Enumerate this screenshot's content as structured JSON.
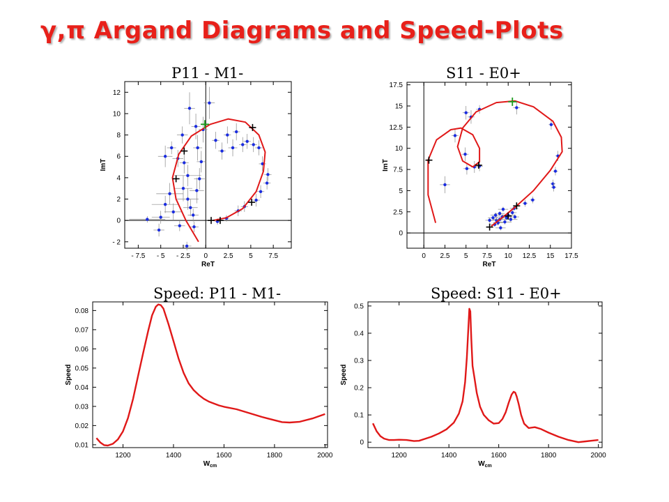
{
  "slide": {
    "title": "γ,π Argand Diagrams and Speed-Plots",
    "colors": {
      "title": "#e8201a",
      "curve": "#e01818",
      "points": "#1a2ce0",
      "marker": "#000000",
      "green_marker": "#1a9a1a"
    }
  },
  "chart_data": [
    {
      "type": "scatter",
      "title": "P11 -  M1-",
      "xlabel": "ReT",
      "ylabel": "ImT",
      "xlim": [
        -9,
        9.5
      ],
      "ylim": [
        -2.6,
        13
      ],
      "xticks": [
        -7.5,
        -5,
        -2.5,
        0,
        2.5,
        5,
        7.5
      ],
      "xtick_labels": [
        "- 7.5",
        "- 5",
        "- 2.5",
        "0",
        "2.5",
        "5",
        "7.5"
      ],
      "yticks": [
        -2,
        0,
        2,
        4,
        6,
        8,
        10,
        12
      ],
      "ytick_labels": [
        "- 2",
        "0",
        "2",
        "4",
        "6",
        "8",
        "10",
        "12"
      ],
      "axis_lines": {
        "x": 0,
        "y": 0
      },
      "curve": [
        [
          -0.8,
          -2.0
        ],
        [
          -2.2,
          0.0
        ],
        [
          -3.3,
          2.0
        ],
        [
          -3.7,
          4.0
        ],
        [
          -3.0,
          6.2
        ],
        [
          -1.6,
          7.9
        ],
        [
          0.5,
          9.0
        ],
        [
          2.5,
          9.5
        ],
        [
          4.4,
          9.2
        ],
        [
          5.9,
          8.0
        ],
        [
          6.6,
          6.4
        ],
        [
          6.4,
          4.6
        ],
        [
          5.6,
          2.7
        ],
        [
          4.1,
          1.1
        ],
        [
          2.3,
          0.25
        ],
        [
          0.8,
          0.0
        ]
      ],
      "markers_black": [
        [
          -2.4,
          6.5
        ],
        [
          -3.3,
          3.9
        ],
        [
          5.2,
          8.7
        ],
        [
          5.1,
          1.7
        ],
        [
          0.6,
          0.0
        ],
        [
          1.6,
          0.0
        ]
      ],
      "markers_green": [
        [
          -0.1,
          9.0
        ]
      ],
      "points": [
        [
          -6.5,
          0.1,
          2.0,
          0.3
        ],
        [
          -5.0,
          0.3,
          1.0,
          0.6
        ],
        [
          -4.5,
          1.5,
          1.5,
          0.8
        ],
        [
          -4.0,
          2.5,
          1.5,
          1.0
        ],
        [
          -4.5,
          6.0,
          0.8,
          1.0
        ],
        [
          -3.8,
          6.8,
          0.5,
          0.6
        ],
        [
          -3.1,
          5.8,
          0.6,
          0.8
        ],
        [
          -2.6,
          8.0,
          0.6,
          0.8
        ],
        [
          -2.4,
          5.4,
          0.5,
          1.0
        ],
        [
          -2.0,
          4.2,
          1.5,
          1.0
        ],
        [
          -2.5,
          3.0,
          1.0,
          1.2
        ],
        [
          -2.0,
          2.0,
          1.2,
          1.0
        ],
        [
          -1.7,
          1.2,
          0.8,
          0.8
        ],
        [
          -1.4,
          0.5,
          0.6,
          0.6
        ],
        [
          -1.0,
          2.8,
          0.8,
          1.2
        ],
        [
          -0.7,
          3.9,
          0.6,
          1.0
        ],
        [
          -0.5,
          5.5,
          0.5,
          1.0
        ],
        [
          -0.9,
          6.8,
          0.5,
          1.2
        ],
        [
          -0.3,
          8.5,
          0.5,
          1.2
        ],
        [
          -1.1,
          8.8,
          0.5,
          1.2
        ],
        [
          -1.8,
          10.5,
          0.6,
          1.5
        ],
        [
          0.4,
          11.0,
          0.6,
          1.5
        ],
        [
          1.1,
          7.5,
          0.4,
          0.8
        ],
        [
          1.8,
          6.5,
          0.4,
          0.8
        ],
        [
          2.4,
          8.0,
          0.4,
          0.8
        ],
        [
          3.0,
          6.8,
          0.5,
          0.8
        ],
        [
          3.4,
          8.3,
          0.4,
          0.8
        ],
        [
          4.1,
          7.1,
          0.4,
          0.7
        ],
        [
          4.6,
          7.4,
          0.4,
          0.7
        ],
        [
          5.3,
          7.1,
          0.4,
          0.7
        ],
        [
          5.9,
          6.8,
          0.4,
          0.7
        ],
        [
          6.3,
          5.3,
          0.4,
          0.7
        ],
        [
          6.9,
          4.3,
          0.4,
          0.6
        ],
        [
          6.8,
          3.5,
          0.4,
          0.6
        ],
        [
          6.1,
          2.7,
          0.4,
          0.6
        ],
        [
          5.6,
          1.9,
          0.4,
          0.6
        ],
        [
          4.3,
          1.3,
          0.4,
          0.5
        ],
        [
          3.6,
          0.9,
          0.4,
          0.5
        ],
        [
          2.3,
          0.2,
          0.3,
          0.3
        ],
        [
          1.3,
          -0.1,
          0.3,
          0.3
        ],
        [
          -1.3,
          -0.6,
          0.5,
          0.5
        ],
        [
          -2.9,
          -0.5,
          0.6,
          0.5
        ],
        [
          -2.1,
          -2.4,
          0.5,
          0.4
        ],
        [
          -5.2,
          -0.9,
          0.6,
          0.6
        ],
        [
          -3.6,
          0.8,
          1.0,
          0.8
        ]
      ]
    },
    {
      "type": "scatter",
      "title": "S11 -  E0+",
      "xlabel": "ReT",
      "ylabel": "ImT",
      "xlim": [
        -2,
        17.5
      ],
      "ylim": [
        -1.8,
        17.8
      ],
      "xticks": [
        0,
        2.5,
        5,
        7.5,
        10,
        12.5,
        15,
        17.5
      ],
      "xtick_labels": [
        "0",
        "2.5",
        "5",
        "7.5",
        "10",
        "12.5",
        "15",
        "17.5"
      ],
      "yticks": [
        0,
        2.5,
        5,
        7.5,
        10,
        12.5,
        15,
        17.5
      ],
      "ytick_labels": [
        "0",
        "2.5",
        "5",
        "7.5",
        "10",
        "12.5",
        "15",
        "17.5"
      ],
      "axis_lines": {
        "x": 0,
        "y": 0
      },
      "curve": [
        [
          1.4,
          1.2
        ],
        [
          0.5,
          4.5
        ],
        [
          0.5,
          8.6
        ],
        [
          1.5,
          11.0
        ],
        [
          3.2,
          12.2
        ],
        [
          4.4,
          12.4
        ],
        [
          5.8,
          11.6
        ],
        [
          6.6,
          10.0
        ],
        [
          6.6,
          8.4
        ],
        [
          5.8,
          7.8
        ],
        [
          4.6,
          8.5
        ],
        [
          4.0,
          10.2
        ],
        [
          4.6,
          12.4
        ],
        [
          6.2,
          14.3
        ],
        [
          8.6,
          15.4
        ],
        [
          10.8,
          15.6
        ],
        [
          13.0,
          14.9
        ],
        [
          15.3,
          13.2
        ],
        [
          16.3,
          11.3
        ],
        [
          16.4,
          9.6
        ],
        [
          15.0,
          7.4
        ],
        [
          13.0,
          5.0
        ],
        [
          11.0,
          3.2
        ],
        [
          9.4,
          1.9
        ],
        [
          8.0,
          0.8
        ]
      ],
      "markers_black": [
        [
          0.6,
          8.6
        ],
        [
          6.5,
          8.0
        ],
        [
          7.8,
          0.7
        ],
        [
          11.0,
          3.2
        ],
        [
          10.0,
          2.0
        ]
      ],
      "markers_green": [
        [
          10.5,
          15.5
        ]
      ],
      "points": [
        [
          2.5,
          5.7,
          0.6,
          1.0
        ],
        [
          3.7,
          11.5,
          0.4,
          0.8
        ],
        [
          5.0,
          14.2,
          0.4,
          0.8
        ],
        [
          5.6,
          13.7,
          0.4,
          0.8
        ],
        [
          6.6,
          14.6,
          0.4,
          0.5
        ],
        [
          11.0,
          14.8,
          0.4,
          0.8
        ],
        [
          4.9,
          9.3,
          0.4,
          0.8
        ],
        [
          5.1,
          7.6,
          0.4,
          0.7
        ],
        [
          6.0,
          7.8,
          0.4,
          0.7
        ],
        [
          6.6,
          7.9,
          0.4,
          0.6
        ],
        [
          15.1,
          12.8,
          0.3,
          0.6
        ],
        [
          15.9,
          9.1,
          0.3,
          0.6
        ],
        [
          15.6,
          7.3,
          0.3,
          0.5
        ],
        [
          15.3,
          5.8,
          0.3,
          0.5
        ],
        [
          15.4,
          5.4,
          0.3,
          0.5
        ],
        [
          12.9,
          3.9,
          0.3,
          0.4
        ],
        [
          12.0,
          3.5,
          0.3,
          0.4
        ],
        [
          8.4,
          1.0,
          0.5,
          0.3
        ],
        [
          8.6,
          1.5,
          0.6,
          0.3
        ],
        [
          9.0,
          1.6,
          0.8,
          0.3
        ],
        [
          9.3,
          1.9,
          0.8,
          0.3
        ],
        [
          9.6,
          1.3,
          0.8,
          0.3
        ],
        [
          10.0,
          2.1,
          0.8,
          0.3
        ],
        [
          10.3,
          1.6,
          0.8,
          0.3
        ],
        [
          9.0,
          2.3,
          0.6,
          0.3
        ],
        [
          8.2,
          1.8,
          0.6,
          0.3
        ],
        [
          8.8,
          1.2,
          0.6,
          0.3
        ],
        [
          9.8,
          1.8,
          0.6,
          0.3
        ],
        [
          10.5,
          2.4,
          0.5,
          0.3
        ],
        [
          10.8,
          1.9,
          0.5,
          0.3
        ],
        [
          8.5,
          2.1,
          0.6,
          0.3
        ],
        [
          9.4,
          2.8,
          0.6,
          0.3
        ],
        [
          10.7,
          2.9,
          0.5,
          0.3
        ],
        [
          7.8,
          1.5,
          0.5,
          0.3
        ],
        [
          9.1,
          0.6,
          0.6,
          0.3
        ]
      ]
    },
    {
      "type": "line",
      "title": "Speed: P11 -  M1-",
      "xlabel": "W",
      "xlabel_sub": "cm",
      "ylabel": "Speed",
      "xlim": [
        1080,
        2010
      ],
      "ylim": [
        0.0085,
        0.0845
      ],
      "xticks": [
        1200,
        1400,
        1600,
        1800,
        2000
      ],
      "xtick_labels": [
        "1200",
        "1400",
        "1600",
        "1800",
        "2000"
      ],
      "yticks": [
        0.01,
        0.02,
        0.03,
        0.04,
        0.05,
        0.06,
        0.07,
        0.08
      ],
      "ytick_labels": [
        "0.01",
        "0.02",
        "0.03",
        "0.04",
        "0.05",
        "0.06",
        "0.07",
        "0.08"
      ],
      "x": [
        1095,
        1110,
        1125,
        1140,
        1160,
        1180,
        1200,
        1220,
        1240,
        1260,
        1280,
        1300,
        1315,
        1330,
        1340,
        1350,
        1360,
        1380,
        1400,
        1420,
        1440,
        1460,
        1480,
        1500,
        1520,
        1540,
        1560,
        1580,
        1600,
        1650,
        1700,
        1750,
        1800,
        1830,
        1860,
        1900,
        1950,
        2000
      ],
      "y": [
        0.0135,
        0.0112,
        0.0098,
        0.0096,
        0.0105,
        0.0128,
        0.017,
        0.024,
        0.034,
        0.046,
        0.058,
        0.0695,
        0.0775,
        0.082,
        0.0832,
        0.0828,
        0.081,
        0.073,
        0.064,
        0.055,
        0.0475,
        0.042,
        0.0385,
        0.036,
        0.034,
        0.0325,
        0.0315,
        0.0305,
        0.0298,
        0.0285,
        0.0265,
        0.0245,
        0.0228,
        0.0218,
        0.0216,
        0.022,
        0.0237,
        0.026
      ]
    },
    {
      "type": "line",
      "title": "Speed: S11 -  E0+",
      "xlabel": "W",
      "xlabel_sub": "cm",
      "ylabel": "Speed",
      "xlim": [
        1075,
        2015
      ],
      "ylim": [
        -0.02,
        0.515
      ],
      "xticks": [
        1200,
        1400,
        1600,
        1800,
        2000
      ],
      "xtick_labels": [
        "1200",
        "1400",
        "1600",
        "1800",
        "2000"
      ],
      "yticks": [
        0,
        0.1,
        0.2,
        0.3,
        0.4,
        0.5
      ],
      "ytick_labels": [
        "0",
        "0.1",
        "0.2",
        "0.3",
        "0.4",
        "0.5"
      ],
      "x": [
        1095,
        1110,
        1125,
        1140,
        1160,
        1180,
        1200,
        1230,
        1260,
        1280,
        1300,
        1330,
        1360,
        1390,
        1420,
        1440,
        1455,
        1465,
        1472,
        1478,
        1482,
        1486,
        1490,
        1495,
        1502,
        1512,
        1525,
        1540,
        1560,
        1580,
        1600,
        1615,
        1628,
        1640,
        1652,
        1660,
        1666,
        1672,
        1680,
        1690,
        1702,
        1720,
        1745,
        1770,
        1800,
        1840,
        1880,
        1920,
        1950,
        1980,
        2000
      ],
      "y": [
        0.069,
        0.04,
        0.022,
        0.013,
        0.008,
        0.008,
        0.009,
        0.008,
        0.004,
        0.005,
        0.011,
        0.02,
        0.032,
        0.047,
        0.072,
        0.105,
        0.15,
        0.22,
        0.31,
        0.42,
        0.49,
        0.48,
        0.38,
        0.28,
        0.24,
        0.18,
        0.13,
        0.1,
        0.08,
        0.068,
        0.07,
        0.085,
        0.11,
        0.145,
        0.175,
        0.185,
        0.182,
        0.168,
        0.14,
        0.1,
        0.068,
        0.052,
        0.055,
        0.048,
        0.035,
        0.02,
        0.008,
        0.0,
        0.003,
        0.006,
        0.008
      ]
    }
  ]
}
